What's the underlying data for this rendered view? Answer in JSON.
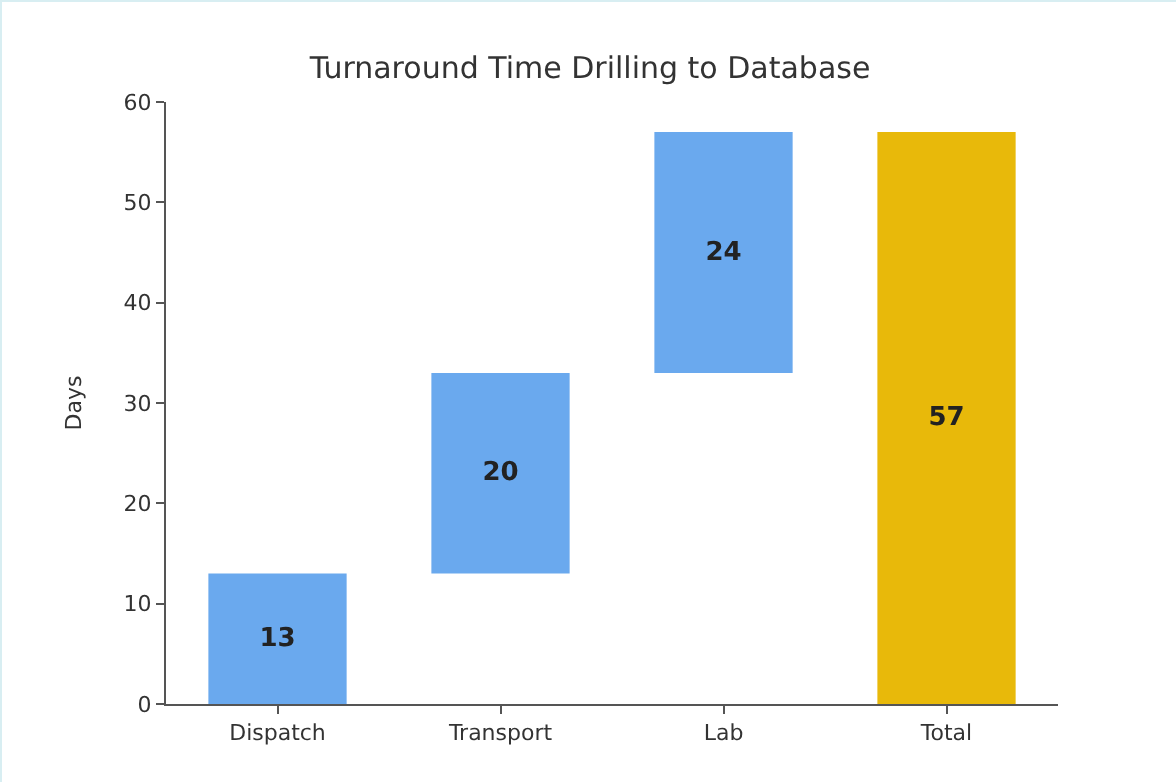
{
  "chart_data": {
    "type": "bar",
    "title": "Turnaround Time Drilling to Database",
    "ylabel": "Days",
    "categories": [
      "Dispatch",
      "Transport",
      "Lab",
      "Total"
    ],
    "values": [
      13,
      20,
      24,
      57
    ],
    "base": [
      0,
      13,
      33,
      0
    ],
    "colors": [
      "#6aa9ee",
      "#6aa9ee",
      "#6aa9ee",
      "#e8b90a"
    ],
    "ylim": [
      0,
      60
    ],
    "yticks": [
      0,
      10,
      20,
      30,
      40,
      50,
      60
    ],
    "data_labels": true
  }
}
